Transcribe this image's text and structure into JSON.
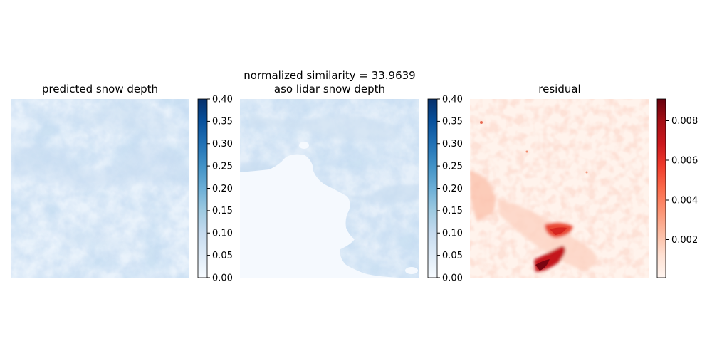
{
  "figure": {
    "panels": [
      {
        "title": "predicted snow depth",
        "colormap": "Blues",
        "colorbar": {
          "ticks": [
            "0.00",
            "0.05",
            "0.10",
            "0.15",
            "0.20",
            "0.25",
            "0.30",
            "0.35",
            "0.40"
          ],
          "vmin": 0.0,
          "vmax": 0.4
        }
      },
      {
        "suptitle": "normalized similarity = 33.9639",
        "title": "aso lidar snow depth",
        "colormap": "Blues",
        "colorbar": {
          "ticks": [
            "0.00",
            "0.05",
            "0.10",
            "0.15",
            "0.20",
            "0.25",
            "0.30",
            "0.35",
            "0.40"
          ],
          "vmin": 0.0,
          "vmax": 0.4
        }
      },
      {
        "title": "residual",
        "colormap": "Reds",
        "colorbar": {
          "ticks": [
            "0.002",
            "0.004",
            "0.006",
            "0.008"
          ],
          "vmin": 0.0,
          "vmax": 0.009
        }
      }
    ]
  },
  "chart_data": [
    {
      "type": "heatmap",
      "title": "predicted snow depth",
      "colormap": "Blues",
      "value_range": [
        0.0,
        0.4
      ],
      "colorbar_ticks": [
        0.0,
        0.05,
        0.1,
        0.15,
        0.2,
        0.25,
        0.3,
        0.35,
        0.4
      ],
      "typical_values": [
        0.02,
        0.08
      ],
      "axes": "off"
    },
    {
      "type": "heatmap",
      "title": "aso lidar snow depth",
      "suptitle": "normalized similarity = 33.9639",
      "colormap": "Blues",
      "value_range": [
        0.0,
        0.4
      ],
      "colorbar_ticks": [
        0.0,
        0.05,
        0.1,
        0.15,
        0.2,
        0.25,
        0.3,
        0.35,
        0.4
      ],
      "typical_values": [
        0.0,
        0.08
      ],
      "axes": "off"
    },
    {
      "type": "heatmap",
      "title": "residual",
      "colormap": "Reds",
      "value_range": [
        0.0,
        0.009
      ],
      "colorbar_ticks": [
        0.002,
        0.004,
        0.006,
        0.008
      ],
      "max_value_approx": 0.009,
      "axes": "off"
    }
  ]
}
